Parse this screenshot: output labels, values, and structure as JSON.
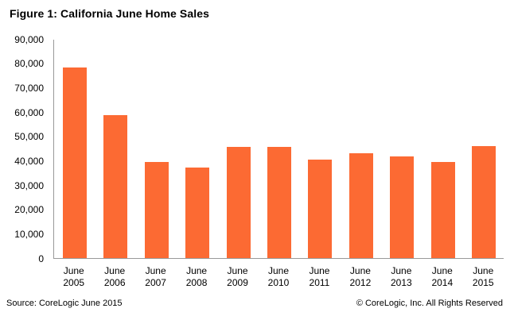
{
  "title": "Figure 1: California June Home Sales",
  "chart_data": {
    "type": "bar",
    "title": "Figure 1: California June Home Sales",
    "categories": [
      "June 2005",
      "June 2006",
      "June 2007",
      "June 2008",
      "June 2009",
      "June 2010",
      "June 2011",
      "June 2012",
      "June 2013",
      "June 2014",
      "June 2015"
    ],
    "values": [
      78400,
      58800,
      39400,
      37100,
      45700,
      45600,
      40600,
      43000,
      41900,
      39500,
      45900
    ],
    "xlabel": "",
    "ylabel": "",
    "ylim": [
      0,
      90000
    ],
    "ytick_step": 10000,
    "ytick_labels": [
      "0",
      "10,000",
      "20,000",
      "30,000",
      "40,000",
      "50,000",
      "60,000",
      "70,000",
      "80,000",
      "90,000"
    ],
    "grid": false,
    "legend": false
  },
  "footer": {
    "source": "Source: CoreLogic June 2015",
    "copyright": "© CoreLogic, Inc. All Rights Reserved"
  },
  "colors": {
    "bar": "#FC6A33",
    "axis": "#999999",
    "text": "#000000",
    "background": "#FFFFFF"
  }
}
